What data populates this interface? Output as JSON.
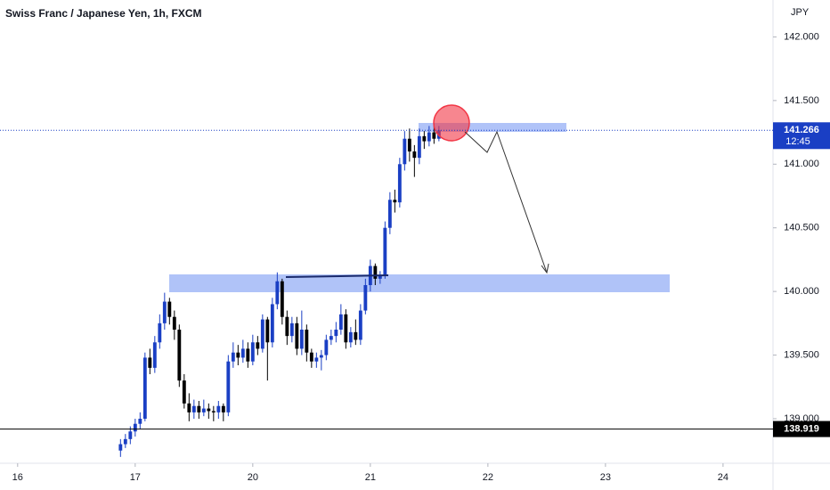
{
  "chart_data": {
    "type": "candlestick",
    "title": "Swiss Franc / Japanese Yen, 1h, FXCM",
    "y_axis_label": "JPY",
    "x": [
      21,
      22,
      23,
      24,
      25,
      26,
      27,
      28,
      29,
      30,
      31,
      32,
      33,
      34,
      35,
      36,
      37,
      38,
      39,
      40,
      41,
      42,
      43,
      44,
      45,
      46,
      47,
      48,
      49,
      50,
      51,
      52,
      53,
      54,
      55,
      56,
      57,
      58,
      59,
      60,
      61,
      62,
      63,
      64,
      65,
      66,
      67,
      68,
      69,
      70,
      71,
      72,
      73,
      74,
      75,
      76,
      77,
      78,
      79,
      80,
      81,
      82,
      83,
      84,
      85,
      86
    ],
    "open": [
      138.75,
      138.8,
      138.84,
      138.9,
      138.96,
      139.0,
      139.48,
      139.4,
      139.6,
      139.75,
      139.92,
      139.8,
      139.7,
      139.3,
      139.12,
      139.05,
      139.1,
      139.05,
      139.08,
      139.06,
      139.05,
      139.1,
      139.05,
      139.45,
      139.52,
      139.48,
      139.55,
      139.45,
      139.6,
      139.55,
      139.78,
      139.6,
      139.9,
      140.08,
      139.8,
      139.65,
      139.75,
      139.55,
      139.7,
      139.52,
      139.45,
      139.48,
      139.5,
      139.62,
      139.65,
      139.7,
      139.82,
      139.6,
      139.68,
      139.62,
      139.85,
      140.05,
      140.2,
      140.1,
      140.12,
      140.5,
      140.72,
      140.7,
      141.0,
      141.2,
      141.1,
      141.05,
      141.22,
      141.18,
      141.25,
      141.2
    ],
    "high": [
      138.84,
      138.88,
      138.94,
      139.0,
      139.05,
      139.52,
      139.55,
      139.65,
      139.82,
      139.99,
      139.95,
      139.85,
      139.74,
      139.35,
      139.2,
      139.15,
      139.14,
      139.15,
      139.12,
      139.1,
      139.14,
      139.12,
      139.5,
      139.6,
      139.58,
      139.62,
      139.6,
      139.66,
      139.65,
      139.82,
      139.8,
      139.95,
      140.15,
      140.1,
      139.85,
      139.8,
      139.8,
      139.85,
      139.74,
      139.55,
      139.52,
      139.54,
      139.66,
      139.7,
      139.76,
      139.9,
      139.86,
      139.72,
      139.78,
      139.9,
      140.1,
      140.25,
      140.22,
      140.16,
      140.55,
      140.78,
      140.8,
      141.05,
      141.26,
      141.28,
      141.15,
      141.28,
      141.26,
      141.3,
      141.32,
      141.3
    ],
    "low": [
      138.7,
      138.77,
      138.8,
      138.86,
      138.92,
      138.98,
      139.35,
      139.36,
      139.55,
      139.7,
      139.74,
      139.62,
      139.25,
      139.08,
      138.98,
      139.0,
      139.0,
      139.02,
      139.0,
      138.98,
      139.0,
      138.98,
      139.02,
      139.4,
      139.42,
      139.44,
      139.4,
      139.42,
      139.5,
      139.52,
      139.3,
      139.56,
      139.86,
      139.74,
      139.58,
      139.6,
      139.5,
      139.5,
      139.45,
      139.4,
      139.4,
      139.38,
      139.46,
      139.58,
      139.6,
      139.66,
      139.55,
      139.56,
      139.58,
      139.58,
      139.82,
      140.0,
      140.05,
      140.06,
      140.1,
      140.45,
      140.62,
      140.66,
      140.95,
      141.02,
      140.9,
      141.0,
      141.12,
      141.14,
      141.16,
      141.18
    ],
    "close": [
      138.8,
      138.84,
      138.9,
      138.96,
      139.0,
      139.48,
      139.4,
      139.6,
      139.75,
      139.92,
      139.8,
      139.7,
      139.3,
      139.12,
      139.05,
      139.1,
      139.05,
      139.08,
      139.06,
      139.05,
      139.1,
      139.05,
      139.45,
      139.52,
      139.48,
      139.55,
      139.45,
      139.6,
      139.55,
      139.78,
      139.6,
      139.9,
      140.08,
      139.8,
      139.65,
      139.75,
      139.55,
      139.7,
      139.52,
      139.45,
      139.48,
      139.5,
      139.62,
      139.65,
      139.7,
      139.82,
      139.6,
      139.68,
      139.62,
      139.85,
      140.05,
      140.2,
      140.1,
      140.12,
      140.5,
      140.72,
      140.7,
      141.0,
      141.2,
      141.1,
      141.05,
      141.22,
      141.18,
      141.25,
      141.2,
      141.266
    ],
    "up_color": "#1a3fc4",
    "down_color": "#000000",
    "xlim": [
      -3.6,
      154.2
    ],
    "xticks": [
      {
        "value": 0,
        "label": "16"
      },
      {
        "value": 24,
        "label": "17"
      },
      {
        "value": 48,
        "label": "20"
      },
      {
        "value": 72,
        "label": "21"
      },
      {
        "value": 96,
        "label": "22"
      },
      {
        "value": 120,
        "label": "23"
      },
      {
        "value": 144,
        "label": "24"
      }
    ],
    "ylim": [
      138.65,
      142.29
    ],
    "yticks": [
      {
        "value": 139,
        "label": "139.000"
      },
      {
        "value": 139.5,
        "label": "139.500"
      },
      {
        "value": 140,
        "label": "140.000"
      },
      {
        "value": 140.5,
        "label": "140.500"
      },
      {
        "value": 141,
        "label": "141.000"
      },
      {
        "value": 141.5,
        "label": "141.500"
      },
      {
        "value": 142,
        "label": "142.000"
      }
    ],
    "last_price": 141.266,
    "countdown": "12:45",
    "marked_level": 138.919
  }
}
